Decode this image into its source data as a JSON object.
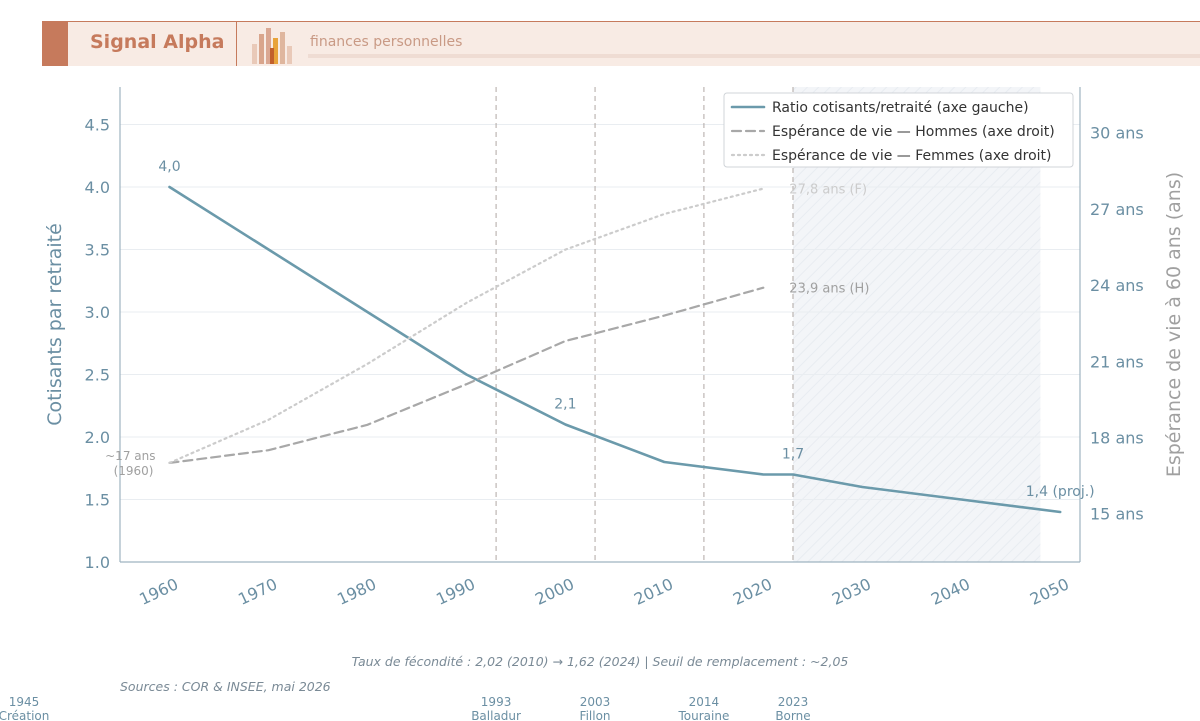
{
  "header": {
    "brand": "Signal Alpha",
    "tagline": "finances personnelles",
    "logo_icon": "bar-chart-logo-icon",
    "accent_color": "#c67a5c"
  },
  "chart_data": {
    "type": "line",
    "xlim": [
      1955,
      2052
    ],
    "x_ticks": [
      1960,
      1970,
      1980,
      1990,
      2000,
      2010,
      2020,
      2030,
      2040,
      2050
    ],
    "y_left": {
      "label": "Cotisants par retraité",
      "range": [
        1.0,
        4.8
      ],
      "ticks": [
        "1.0",
        "1.5",
        "2.0",
        "2.5",
        "3.0",
        "3.5",
        "4.0",
        "4.5"
      ]
    },
    "y_right": {
      "label": "Espérance de vie à 60 ans (ans)",
      "range": [
        13.1,
        31.8
      ],
      "ticks": [
        "15 ans",
        "18 ans",
        "21 ans",
        "24 ans",
        "27 ans",
        "30 ans"
      ]
    },
    "grid": true,
    "legend_position": "top-right",
    "projection_band": [
      2023,
      2048
    ],
    "series": [
      {
        "name": "Ratio cotisants/retraité (axe gauche)",
        "axis": "left",
        "style": "solid",
        "color": "#6b9aab",
        "points": [
          [
            1960,
            4.0
          ],
          [
            1970,
            3.5
          ],
          [
            1980,
            3.0
          ],
          [
            1990,
            2.5
          ],
          [
            2000,
            2.1
          ],
          [
            2010,
            1.8
          ],
          [
            2020,
            1.7
          ],
          [
            2023,
            1.7
          ],
          [
            2030,
            1.6
          ],
          [
            2040,
            1.5
          ],
          [
            2050,
            1.4
          ]
        ]
      },
      {
        "name": "Espérance de vie — Hommes (axe droit)",
        "axis": "right",
        "style": "dashed",
        "color": "#a8a8a8",
        "points": [
          [
            1960,
            17
          ],
          [
            1970,
            17.5
          ],
          [
            1980,
            18.5
          ],
          [
            1990,
            20.1
          ],
          [
            2000,
            21.8
          ],
          [
            2010,
            22.8
          ],
          [
            2020,
            23.9
          ]
        ]
      },
      {
        "name": "Espérance de vie — Femmes (axe droit)",
        "axis": "right",
        "style": "dotted",
        "color": "#cccccc",
        "points": [
          [
            1960,
            17
          ],
          [
            1970,
            18.7
          ],
          [
            1980,
            20.9
          ],
          [
            1990,
            23.3
          ],
          [
            2000,
            25.4
          ],
          [
            2010,
            26.8
          ],
          [
            2020,
            27.8
          ]
        ]
      }
    ],
    "data_labels": [
      {
        "text": "4,0",
        "x": 1960,
        "y": 4.0,
        "axis": "left",
        "color": "#6b8fa3"
      },
      {
        "text": "2,1",
        "x": 2000,
        "y": 2.1,
        "axis": "left",
        "color": "#6b8fa3"
      },
      {
        "text": "1,7",
        "x": 2023,
        "y": 1.7,
        "axis": "left",
        "color": "#6b8fa3"
      },
      {
        "text": "1,4 (proj.)",
        "x": 2050,
        "y": 1.4,
        "axis": "left",
        "color": "#6b8fa3"
      },
      {
        "text": "27,8 ans (F)",
        "x": 2020,
        "y": 27.8,
        "axis": "right",
        "color": "#cccccc"
      },
      {
        "text": "23,9 ans (H)",
        "x": 2020,
        "y": 23.9,
        "axis": "right",
        "color": "#a0a0a0"
      },
      {
        "text": "~17 ans",
        "x": 1960,
        "y": 17,
        "axis": "right",
        "color": "#a0a0a0"
      },
      {
        "text": "(1960)",
        "x": 1960,
        "y": 17,
        "axis": "right",
        "color": "#a0a0a0"
      }
    ],
    "reforms": [
      {
        "year": 1945,
        "label": "Création",
        "line": false
      },
      {
        "year": 1993,
        "label": "Balladur",
        "line": true
      },
      {
        "year": 2003,
        "label": "Fillon",
        "line": true
      },
      {
        "year": 2014,
        "label": "Touraine",
        "line": true
      },
      {
        "year": 2023,
        "label": "Borne",
        "line": true
      }
    ],
    "note": "Taux de fécondité : 2,02 (2010) → 1,62 (2024)  |  Seuil de remplacement : ~2,05",
    "source": "Sources : COR & INSEE, mai 2026"
  }
}
